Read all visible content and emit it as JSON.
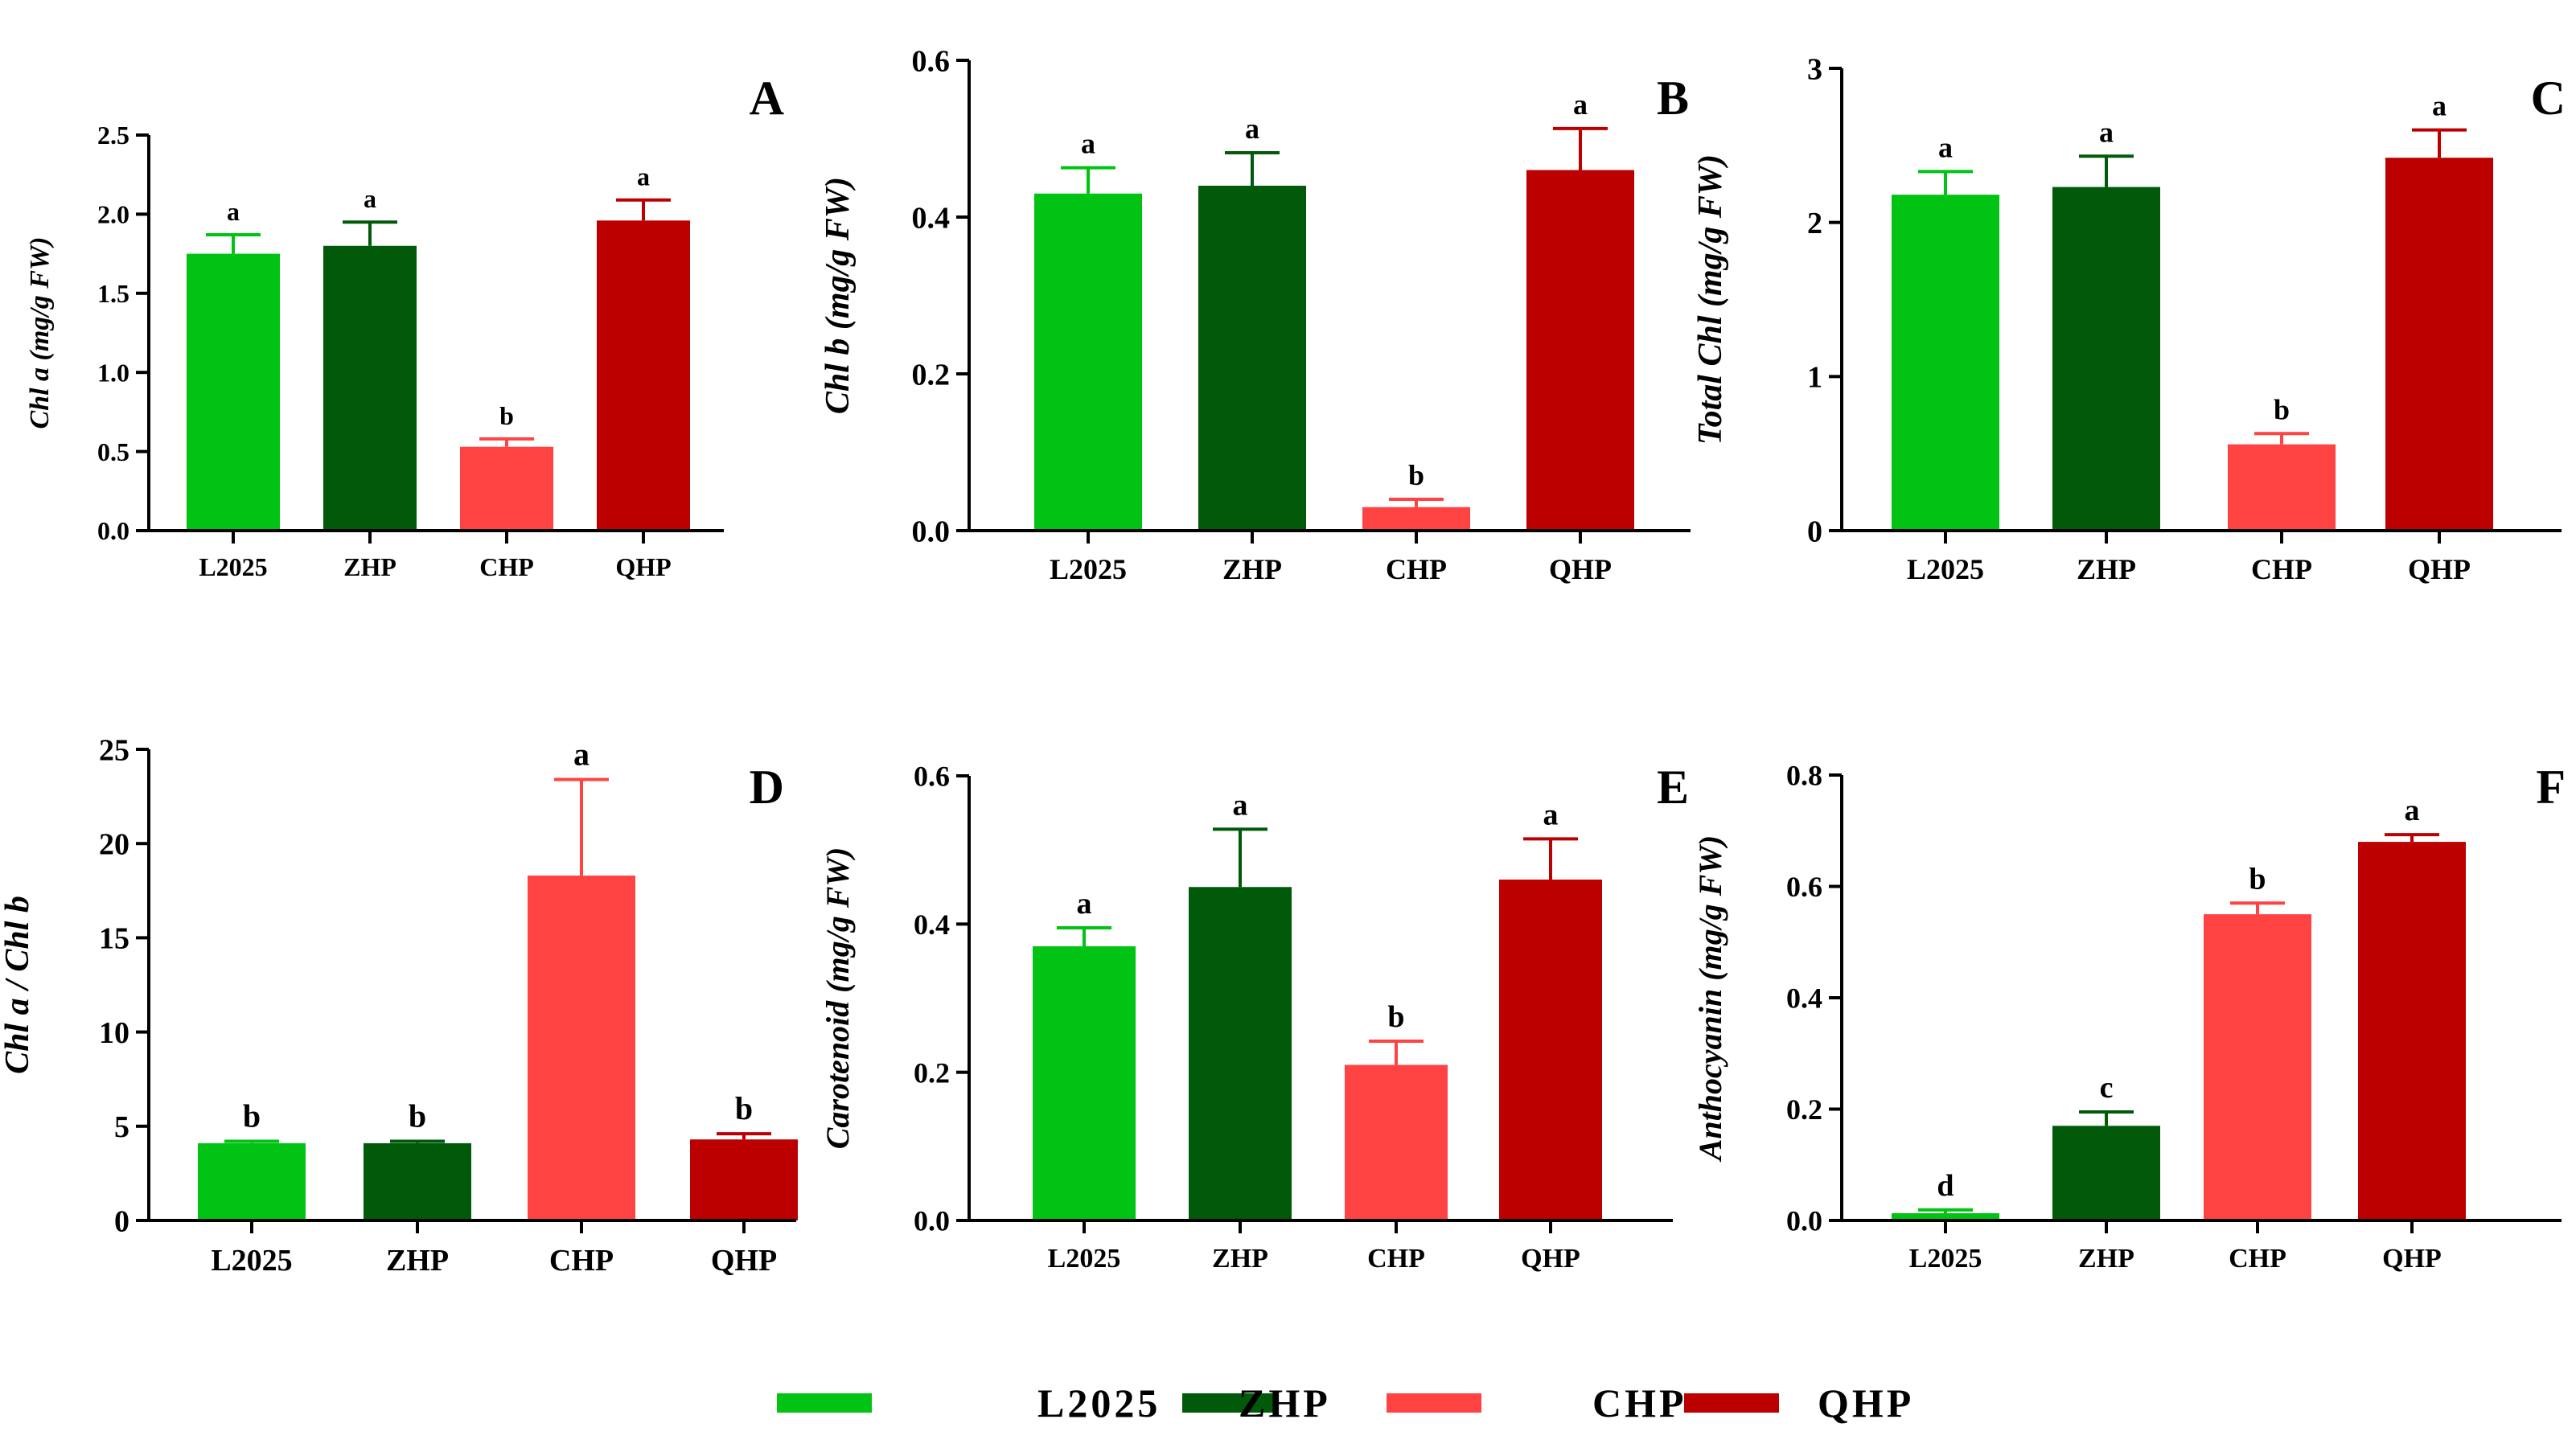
{
  "colors": {
    "L2025": "#00c313",
    "ZHP": "#005a0a",
    "CHP": "#ff4343",
    "QHP": "#bc0000"
  },
  "legend": {
    "items": [
      "L2025",
      "ZHP",
      "CHP",
      "QHP"
    ]
  },
  "chart_data": [
    {
      "panel": "A",
      "type": "bar",
      "ylabel": "Chl a (mg/g FW)",
      "categories": [
        "L2025",
        "ZHP",
        "CHP",
        "QHP"
      ],
      "values": [
        1.75,
        1.8,
        0.53,
        1.96
      ],
      "errors": [
        0.12,
        0.15,
        0.05,
        0.13
      ],
      "letters": [
        "a",
        "a",
        "b",
        "a"
      ],
      "ylim": [
        0,
        2.5
      ],
      "yticks": [
        "0.0",
        "0.5",
        "1.0",
        "1.5",
        "2.0",
        "2.5"
      ]
    },
    {
      "panel": "B",
      "type": "bar",
      "ylabel": "Chl b (mg/g FW)",
      "categories": [
        "L2025",
        "ZHP",
        "CHP",
        "QHP"
      ],
      "values": [
        0.43,
        0.44,
        0.03,
        0.46
      ],
      "errors": [
        0.033,
        0.042,
        0.01,
        0.053
      ],
      "letters": [
        "a",
        "a",
        "b",
        "a"
      ],
      "ylim": [
        0,
        0.6
      ],
      "yticks": [
        "0.0",
        "0.2",
        "0.4",
        "0.6"
      ]
    },
    {
      "panel": "C",
      "type": "bar",
      "ylabel": "Total Chl (mg/g FW)",
      "categories": [
        "L2025",
        "ZHP",
        "CHP",
        "QHP"
      ],
      "values": [
        2.18,
        2.23,
        0.56,
        2.42
      ],
      "errors": [
        0.15,
        0.2,
        0.07,
        0.18
      ],
      "letters": [
        "a",
        "a",
        "b",
        "a"
      ],
      "ylim": [
        0,
        3
      ],
      "yticks": [
        "0",
        "1",
        "2",
        "3"
      ]
    },
    {
      "panel": "D",
      "type": "bar",
      "ylabel": "Chl a / Chl b",
      "categories": [
        "L2025",
        "ZHP",
        "CHP",
        "QHP"
      ],
      "values": [
        4.1,
        4.1,
        18.3,
        4.3
      ],
      "errors": [
        0.1,
        0.1,
        5.1,
        0.3
      ],
      "letters": [
        "b",
        "b",
        "a",
        "b"
      ],
      "ylim": [
        0,
        25
      ],
      "yticks": [
        "0",
        "5",
        "10",
        "15",
        "20",
        "25"
      ]
    },
    {
      "panel": "E",
      "type": "bar",
      "ylabel": "Carotenoid (mg/g FW)",
      "categories": [
        "L2025",
        "ZHP",
        "CHP",
        "QHP"
      ],
      "values": [
        0.37,
        0.45,
        0.21,
        0.46
      ],
      "errors": [
        0.025,
        0.078,
        0.032,
        0.055
      ],
      "letters": [
        "a",
        "a",
        "b",
        "a"
      ],
      "ylim": [
        0,
        0.6
      ],
      "yticks": [
        "0.0",
        "0.2",
        "0.4",
        "0.6"
      ]
    },
    {
      "panel": "F",
      "type": "bar",
      "ylabel": "Anthocyanin (mg/g FW)",
      "categories": [
        "L2025",
        "ZHP",
        "CHP",
        "QHP"
      ],
      "values": [
        0.013,
        0.17,
        0.55,
        0.68
      ],
      "errors": [
        0.006,
        0.025,
        0.02,
        0.013
      ],
      "letters": [
        "d",
        "c",
        "b",
        "a"
      ],
      "ylim": [
        0,
        0.8
      ],
      "yticks": [
        "0.0",
        "0.2",
        "0.4",
        "0.6",
        "0.8"
      ]
    }
  ]
}
